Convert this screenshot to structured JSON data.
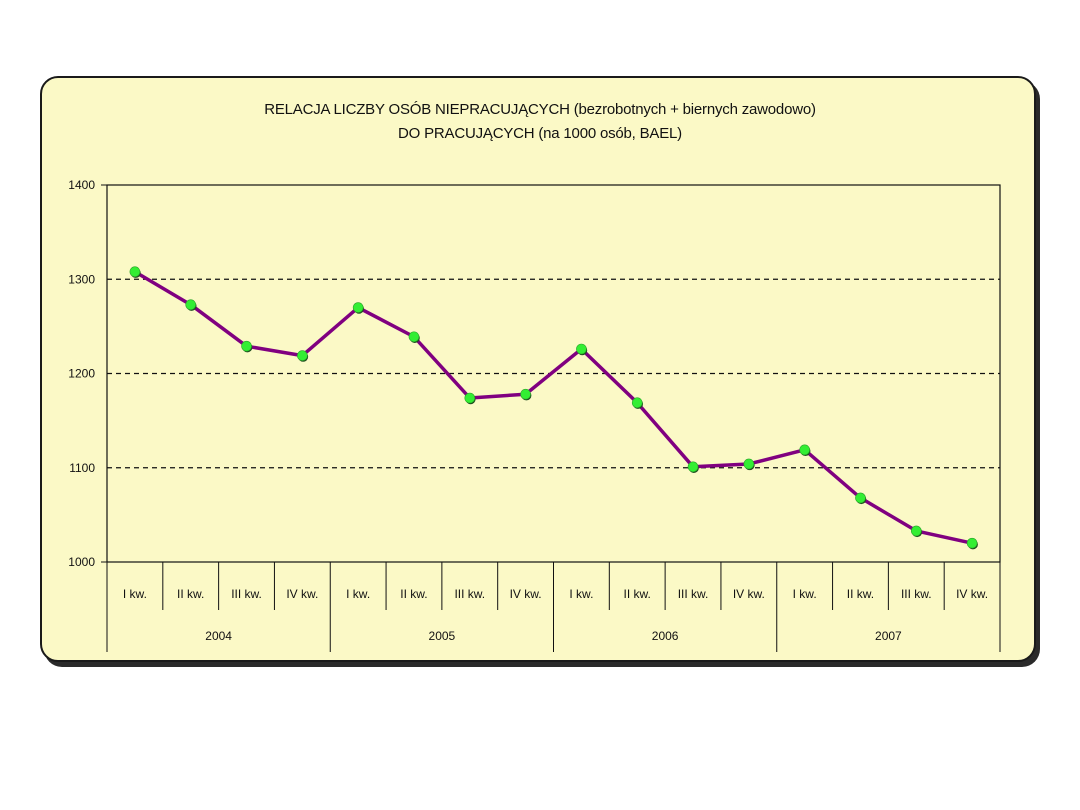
{
  "chart_data": {
    "type": "line",
    "title_line1": "RELACJA LICZBY OSÓB NIEPRACUJĄCYCH  (bezrobotnych + biernych zawodowo)",
    "title_line2": "DO PRACUJĄCYCH  (na 1000 osób, BAEL)",
    "xlabel": "",
    "ylabel": "",
    "ylim": [
      1000,
      1400
    ],
    "yticks": [
      1000,
      1100,
      1200,
      1300,
      1400
    ],
    "grid": "horizontal dashed",
    "legend": "none",
    "categories": [
      "I kw.",
      "II kw.",
      "III kw.",
      "IV kw.",
      "I kw.",
      "II kw.",
      "III kw.",
      "IV kw.",
      "I kw.",
      "II kw.",
      "III kw.",
      "IV kw.",
      "I kw.",
      "II kw.",
      "III kw.",
      "IV kw."
    ],
    "years": [
      {
        "label": "2004",
        "span": 4
      },
      {
        "label": "2005",
        "span": 4
      },
      {
        "label": "2006",
        "span": 4
      },
      {
        "label": "2007",
        "span": 4
      }
    ],
    "values": [
      1308,
      1273,
      1229,
      1219,
      1270,
      1239,
      1174,
      1178,
      1226,
      1169,
      1101,
      1104,
      1119,
      1068,
      1033,
      1020
    ],
    "colors": {
      "line": "#800080",
      "marker": "#33ee33",
      "background": "#fbf9c6"
    }
  }
}
